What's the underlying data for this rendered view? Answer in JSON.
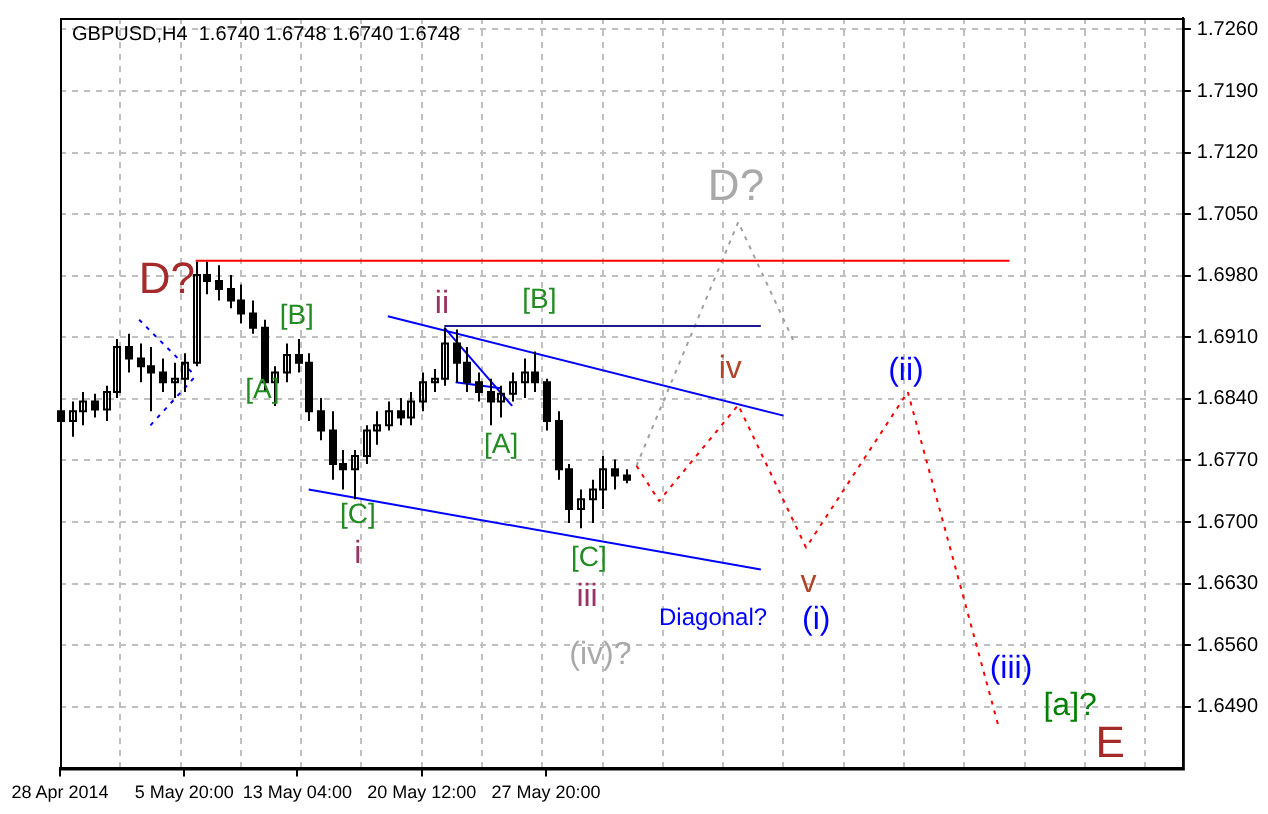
{
  "chart_data": {
    "type": "candlestick",
    "title": "GBPUSD,H4  1.6740 1.6748 1.6740 1.6748",
    "categories": [
      "28 Apr 2014",
      null,
      null,
      null,
      null,
      null,
      null,
      null,
      null,
      null,
      null,
      "5 May 20:00",
      null,
      null,
      null,
      null,
      null,
      null,
      null,
      null,
      null,
      "13 May 04:00",
      null,
      null,
      null,
      null,
      null,
      null,
      null,
      null,
      null,
      null,
      "20 May 12:00",
      null,
      null,
      null,
      null,
      null,
      null,
      null,
      null,
      null,
      null,
      "27 May 20:00",
      null,
      null,
      null,
      null,
      null,
      null,
      null,
      null,
      null,
      null,
      null,
      null,
      null,
      null,
      null,
      null,
      null,
      null,
      null,
      null,
      null,
      null,
      null,
      null,
      null,
      null,
      null,
      null,
      null,
      null,
      null,
      null,
      null,
      null,
      null,
      null,
      null,
      null,
      null,
      null,
      null,
      null,
      null,
      null,
      null,
      null,
      null,
      null,
      null,
      null,
      null,
      null,
      null,
      null,
      null,
      null
    ],
    "ohlc": [
      [
        1.6826,
        1.6841,
        1.6804,
        1.6815
      ],
      [
        1.6815,
        1.6837,
        1.6797,
        1.6826
      ],
      [
        1.6826,
        1.6848,
        1.681,
        1.6837
      ],
      [
        1.6837,
        1.6846,
        1.6819,
        1.6828
      ],
      [
        1.6828,
        1.6855,
        1.6815,
        1.6848
      ],
      [
        1.6848,
        1.6908,
        1.6841,
        1.6899
      ],
      [
        1.6899,
        1.6914,
        1.687,
        1.6886
      ],
      [
        1.6886,
        1.6903,
        1.6859,
        1.6877
      ],
      [
        1.6877,
        1.6899,
        1.6826,
        1.687
      ],
      [
        1.687,
        1.6886,
        1.6848,
        1.6859
      ],
      [
        1.6859,
        1.6881,
        1.6841,
        1.6863
      ],
      [
        1.6863,
        1.6892,
        1.6848,
        1.6881
      ],
      [
        1.6881,
        1.6996,
        1.6877,
        1.6981
      ],
      [
        1.6981,
        1.6996,
        1.6959,
        1.6974
      ],
      [
        1.6974,
        1.6992,
        1.6952,
        1.6965
      ],
      [
        1.6965,
        1.6981,
        1.6943,
        1.6952
      ],
      [
        1.6952,
        1.697,
        1.6926,
        1.6937
      ],
      [
        1.6937,
        1.6952,
        1.6914,
        1.6921
      ],
      [
        1.6921,
        1.693,
        1.6848,
        1.6859
      ],
      [
        1.6859,
        1.6877,
        1.6832,
        1.687
      ],
      [
        1.687,
        1.6903,
        1.6859,
        1.689
      ],
      [
        1.689,
        1.6908,
        1.687,
        1.6881
      ],
      [
        1.6881,
        1.6892,
        1.6815,
        1.6826
      ],
      [
        1.6826,
        1.6841,
        1.6793,
        1.6804
      ],
      [
        1.6804,
        1.6826,
        1.6748,
        1.6766
      ],
      [
        1.6766,
        1.6782,
        1.6737,
        1.676
      ],
      [
        1.676,
        1.6782,
        1.6726,
        1.6775
      ],
      [
        1.6775,
        1.681,
        1.6766,
        1.6804
      ],
      [
        1.6804,
        1.6826,
        1.6788,
        1.681
      ],
      [
        1.681,
        1.6837,
        1.6804,
        1.6826
      ],
      [
        1.6826,
        1.6841,
        1.681,
        1.6819
      ],
      [
        1.6819,
        1.6848,
        1.681,
        1.6837
      ],
      [
        1.6837,
        1.687,
        1.6826,
        1.6859
      ],
      [
        1.6859,
        1.6874,
        1.6848,
        1.6863
      ],
      [
        1.6863,
        1.6921,
        1.6855,
        1.6903
      ],
      [
        1.6903,
        1.6919,
        1.6859,
        1.6881
      ],
      [
        1.6881,
        1.6899,
        1.6848,
        1.6859
      ],
      [
        1.6859,
        1.687,
        1.6837,
        1.6848
      ],
      [
        1.6848,
        1.6863,
        1.681,
        1.6837
      ],
      [
        1.6837,
        1.6855,
        1.6819,
        1.6846
      ],
      [
        1.6846,
        1.687,
        1.6837,
        1.6859
      ],
      [
        1.6859,
        1.6886,
        1.6841,
        1.687
      ],
      [
        1.687,
        1.6894,
        1.6848,
        1.6859
      ],
      [
        1.6859,
        1.6863,
        1.6804,
        1.6815
      ],
      [
        1.6815,
        1.6826,
        1.6748,
        1.676
      ],
      [
        1.676,
        1.6766,
        1.6699,
        1.6715
      ],
      [
        1.6715,
        1.6737,
        1.6693,
        1.6726
      ],
      [
        1.6726,
        1.6748,
        1.6699,
        1.6737
      ],
      [
        1.6737,
        1.6775,
        1.6715,
        1.676
      ],
      [
        1.676,
        1.6771,
        1.6737,
        1.6753
      ],
      [
        1.6753,
        1.676,
        1.6744,
        1.6748
      ],
      null,
      null,
      null,
      null,
      null,
      null,
      null,
      null,
      null,
      null,
      null,
      null,
      null,
      null,
      null,
      null,
      null,
      null,
      null,
      null,
      null,
      null,
      null,
      null,
      null,
      null,
      null,
      null,
      null,
      null,
      null,
      null,
      null,
      null,
      null,
      null,
      null,
      null,
      null,
      null,
      null,
      null,
      null,
      null,
      null,
      null,
      null,
      null,
      null
    ],
    "series": [
      {
        "type": "line",
        "color": "#ff0000",
        "line_style": "solid",
        "values": [
          null,
          null,
          null,
          null,
          null,
          null,
          null,
          null,
          null,
          null,
          null,
          null,
          1.6997,
          null,
          null,
          null,
          null,
          null,
          null,
          null,
          null,
          null,
          null,
          null,
          null,
          null,
          null,
          null,
          null,
          null,
          null,
          null,
          null,
          null,
          null,
          null,
          null,
          null,
          null,
          null,
          null,
          null,
          null,
          null,
          null,
          null,
          null,
          null,
          null,
          null,
          null,
          null,
          null,
          null,
          null,
          null,
          null,
          null,
          null,
          null,
          null,
          null,
          null,
          null,
          null,
          null,
          null,
          null,
          null,
          null,
          null,
          null,
          null,
          null,
          null,
          null,
          null,
          null,
          null,
          null,
          null,
          null,
          null,
          null,
          1.6997,
          null,
          null,
          null,
          null,
          null,
          null,
          null,
          null,
          null,
          null,
          null,
          null,
          null,
          null,
          null
        ]
      },
      {
        "type": "line",
        "color": "#1a1a8c",
        "line_style": "solid",
        "values": [
          null,
          null,
          null,
          null,
          null,
          null,
          null,
          null,
          null,
          null,
          null,
          null,
          null,
          null,
          null,
          null,
          null,
          null,
          null,
          null,
          null,
          null,
          null,
          null,
          null,
          null,
          null,
          null,
          null,
          null,
          null,
          null,
          null,
          null,
          1.6923,
          null,
          null,
          null,
          null,
          null,
          null,
          null,
          null,
          null,
          null,
          null,
          null,
          null,
          null,
          null,
          null,
          null,
          null,
          null,
          null,
          null,
          null,
          null,
          null,
          null,
          null,
          null,
          1.6923,
          null,
          null,
          null,
          null,
          null,
          null,
          null,
          null,
          null,
          null,
          null,
          null,
          null,
          null,
          null,
          null,
          null,
          null,
          null,
          null,
          null,
          null,
          null,
          null,
          null,
          null,
          null,
          null,
          null,
          null,
          null,
          null,
          null,
          null,
          null,
          null,
          null
        ]
      },
      {
        "type": "line",
        "color": "#0000ff",
        "line_style": "solid",
        "values": [
          null,
          null,
          null,
          null,
          null,
          null,
          null,
          null,
          null,
          null,
          null,
          null,
          null,
          null,
          null,
          null,
          null,
          null,
          null,
          null,
          null,
          null,
          null,
          null,
          null,
          null,
          null,
          null,
          null,
          1.6934,
          null,
          null,
          null,
          null,
          null,
          null,
          null,
          null,
          null,
          null,
          null,
          null,
          null,
          null,
          null,
          null,
          null,
          null,
          null,
          null,
          null,
          null,
          null,
          null,
          null,
          null,
          null,
          null,
          null,
          null,
          null,
          null,
          null,
          null,
          1.6821,
          null,
          null,
          null,
          null,
          null,
          null,
          null,
          null,
          null,
          null,
          null,
          null,
          null,
          null,
          null,
          null,
          null,
          null,
          null,
          null,
          null,
          null,
          null,
          null,
          null,
          null,
          null,
          null,
          null,
          null,
          null,
          null,
          null,
          null,
          null
        ]
      },
      {
        "type": "line",
        "color": "#0000ff",
        "line_style": "solid",
        "values": [
          null,
          null,
          null,
          null,
          null,
          null,
          null,
          null,
          null,
          null,
          null,
          null,
          null,
          null,
          null,
          null,
          null,
          null,
          null,
          null,
          null,
          null,
          1.6737,
          null,
          null,
          null,
          null,
          null,
          null,
          null,
          null,
          null,
          null,
          null,
          null,
          null,
          null,
          null,
          null,
          null,
          null,
          null,
          null,
          null,
          null,
          null,
          null,
          null,
          null,
          null,
          null,
          null,
          null,
          null,
          null,
          null,
          null,
          null,
          null,
          null,
          null,
          null,
          1.6646,
          null,
          null,
          null,
          null,
          null,
          null,
          null,
          null,
          null,
          null,
          null,
          null,
          null,
          null,
          null,
          null,
          null,
          null,
          null,
          null,
          null,
          null,
          null,
          null,
          null,
          null,
          null,
          null,
          null,
          null,
          null,
          null,
          null,
          null,
          null,
          null,
          null
        ]
      },
      {
        "type": "line",
        "color": "#0000ff",
        "line_style": "dotted",
        "values": [
          null,
          null,
          null,
          null,
          null,
          null,
          null,
          1.693,
          null,
          null,
          null,
          null,
          1.6866,
          null,
          null,
          null,
          null,
          null,
          null,
          null,
          null,
          null,
          null,
          null,
          null,
          null,
          null,
          null,
          null,
          null,
          null,
          null,
          null,
          null,
          null,
          null,
          null,
          null,
          null,
          null,
          null,
          null,
          null,
          null,
          null,
          null,
          null,
          null,
          null,
          null,
          null,
          null,
          null,
          null,
          null,
          null,
          null,
          null,
          null,
          null,
          null,
          null,
          null,
          null,
          null,
          null,
          null,
          null,
          null,
          null,
          null,
          null,
          null,
          null,
          null,
          null,
          null,
          null,
          null,
          null,
          null,
          null,
          null,
          null,
          null,
          null,
          null,
          null,
          null,
          null,
          null,
          null,
          null,
          null,
          null,
          null,
          null,
          null,
          null,
          null
        ]
      },
      {
        "type": "line",
        "color": "#0000ff",
        "line_style": "dotted",
        "values": [
          null,
          null,
          null,
          null,
          null,
          null,
          null,
          null,
          1.681,
          null,
          null,
          null,
          1.6866,
          null,
          null,
          null,
          null,
          null,
          null,
          null,
          null,
          null,
          null,
          null,
          null,
          null,
          null,
          null,
          null,
          null,
          null,
          null,
          null,
          null,
          null,
          null,
          null,
          null,
          null,
          null,
          null,
          null,
          null,
          null,
          null,
          null,
          null,
          null,
          null,
          null,
          null,
          null,
          null,
          null,
          null,
          null,
          null,
          null,
          null,
          null,
          null,
          null,
          null,
          null,
          null,
          null,
          null,
          null,
          null,
          null,
          null,
          null,
          null,
          null,
          null,
          null,
          null,
          null,
          null,
          null,
          null,
          null,
          null,
          null,
          null,
          null,
          null,
          null,
          null,
          null,
          null,
          null,
          null,
          null,
          null,
          null,
          null,
          null,
          null,
          null
        ]
      },
      {
        "type": "line",
        "color": "#0000ff",
        "line_style": "solid",
        "values": [
          null,
          null,
          null,
          null,
          null,
          null,
          null,
          null,
          null,
          null,
          null,
          null,
          null,
          null,
          null,
          null,
          null,
          null,
          null,
          null,
          null,
          null,
          null,
          null,
          null,
          null,
          null,
          null,
          null,
          null,
          null,
          null,
          null,
          null,
          1.6921,
          null,
          null,
          null,
          null,
          null,
          1.6832,
          null,
          null,
          null,
          null,
          null,
          null,
          null,
          null,
          null,
          null,
          null,
          null,
          null,
          null,
          null,
          null,
          null,
          null,
          null,
          null,
          null,
          null,
          null,
          null,
          null,
          null,
          null,
          null,
          null,
          null,
          null,
          null,
          null,
          null,
          null,
          null,
          null,
          null,
          null,
          null,
          null,
          null,
          null,
          null,
          null,
          null,
          null,
          null,
          null,
          null,
          null,
          null,
          null,
          null,
          null,
          null,
          null,
          null,
          null
        ]
      },
      {
        "type": "line",
        "color": "#0000ff",
        "line_style": "solid",
        "values": [
          null,
          null,
          null,
          null,
          null,
          null,
          null,
          null,
          null,
          null,
          null,
          null,
          null,
          null,
          null,
          null,
          null,
          null,
          null,
          null,
          null,
          null,
          null,
          null,
          null,
          null,
          null,
          null,
          null,
          null,
          null,
          null,
          null,
          null,
          null,
          1.6859,
          null,
          null,
          null,
          1.6852,
          null,
          null,
          null,
          null,
          null,
          null,
          null,
          null,
          null,
          null,
          null,
          null,
          null,
          null,
          null,
          null,
          null,
          null,
          null,
          null,
          null,
          null,
          null,
          null,
          null,
          null,
          null,
          null,
          null,
          null,
          null,
          null,
          null,
          null,
          null,
          null,
          null,
          null,
          null,
          null,
          null,
          null,
          null,
          null,
          null,
          null,
          null,
          null,
          null,
          null,
          null,
          null,
          null,
          null,
          null,
          null,
          null,
          null,
          null,
          null
        ]
      },
      {
        "type": "line",
        "color": "#a0a0a0",
        "line_style": "dotted",
        "values": [
          null,
          null,
          null,
          null,
          null,
          null,
          null,
          null,
          null,
          null,
          null,
          null,
          null,
          null,
          null,
          null,
          null,
          null,
          null,
          null,
          null,
          null,
          null,
          null,
          null,
          null,
          null,
          null,
          null,
          null,
          null,
          null,
          null,
          null,
          null,
          null,
          null,
          null,
          null,
          null,
          null,
          null,
          null,
          null,
          null,
          null,
          null,
          null,
          null,
          null,
          null,
          1.6764,
          null,
          null,
          null,
          null,
          null,
          null,
          null,
          null,
          1.7041,
          null,
          null,
          null,
          null,
          1.6903,
          null,
          null,
          null,
          null,
          null,
          null,
          null,
          null,
          null,
          null,
          null,
          null,
          null,
          null,
          null,
          null,
          null,
          null,
          null,
          null,
          null,
          null,
          null,
          null,
          null,
          null,
          null,
          null,
          null,
          null,
          null,
          null,
          null,
          null
        ]
      },
      {
        "type": "line",
        "color": "#ff0000",
        "line_style": "dotted",
        "values": [
          null,
          null,
          null,
          null,
          null,
          null,
          null,
          null,
          null,
          null,
          null,
          null,
          null,
          null,
          null,
          null,
          null,
          null,
          null,
          null,
          null,
          null,
          null,
          null,
          null,
          null,
          null,
          null,
          null,
          null,
          null,
          null,
          null,
          null,
          null,
          null,
          null,
          null,
          null,
          null,
          null,
          null,
          null,
          null,
          null,
          null,
          null,
          null,
          null,
          null,
          null,
          1.6764,
          null,
          1.6724,
          null,
          null,
          null,
          null,
          null,
          null,
          1.6833,
          null,
          null,
          null,
          null,
          null,
          1.6671,
          null,
          null,
          null,
          null,
          null,
          null,
          null,
          null,
          1.6848,
          null,
          null,
          null,
          null,
          null,
          null,
          null,
          1.6469,
          null,
          null,
          null,
          null,
          null,
          null,
          null,
          null,
          null,
          null,
          null,
          null,
          null,
          null,
          null,
          null
        ]
      }
    ],
    "annotations": [
      "D?",
      "[B]",
      "[A]",
      "[C]",
      "i",
      "ii",
      "[B]",
      "[A]",
      "[C]",
      "iii",
      "(iv)?",
      "D?",
      "iv",
      "Diagonal?",
      "v",
      "(i)",
      "(ii)",
      "(iii)",
      "[a]?",
      "E"
    ],
    "ylim": [
      1.642,
      1.7273
    ],
    "yticks": [
      {
        "value": 1.726,
        "label": "1.7260"
      },
      {
        "value": 1.719,
        "label": "1.7190"
      },
      {
        "value": 1.712,
        "label": "1.7120"
      },
      {
        "value": 1.705,
        "label": "1.7050"
      },
      {
        "value": 1.698,
        "label": "1.6980"
      },
      {
        "value": 1.691,
        "label": "1.6910"
      },
      {
        "value": 1.684,
        "label": "1.6840"
      },
      {
        "value": 1.677,
        "label": "1.6770"
      },
      {
        "value": 1.67,
        "label": "1.6700"
      },
      {
        "value": 1.663,
        "label": "1.6630"
      },
      {
        "value": 1.656,
        "label": "1.6560"
      },
      {
        "value": 1.649,
        "label": "1.6490"
      }
    ],
    "grid": true,
    "color": "#000000"
  }
}
